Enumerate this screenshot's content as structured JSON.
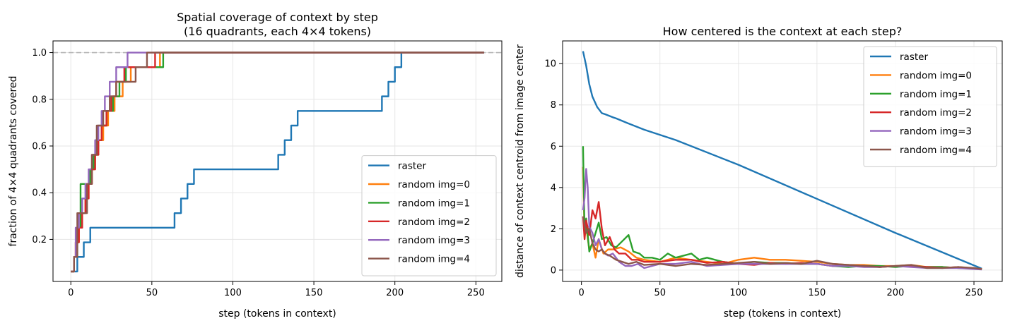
{
  "chart_data": [
    {
      "type": "line",
      "title": "Spatial coverage of context by step\n(16 quadrants, each 4×4 tokens)",
      "xlabel": "step (tokens in context)",
      "ylabel": "fraction of 4×4 quadrants covered",
      "xlim": [
        -11,
        266
      ],
      "ylim": [
        0.02,
        1.05
      ],
      "xticks": [
        0,
        50,
        100,
        150,
        200,
        250
      ],
      "yticks": [
        0.2,
        0.4,
        0.6,
        0.8,
        1.0
      ],
      "xtick_labels": [
        "0",
        "50",
        "100",
        "150",
        "200",
        "250"
      ],
      "ytick_labels": [
        "0.2",
        "0.4",
        "0.6",
        "0.8",
        "1.0"
      ],
      "grid": true,
      "legend_position": "lower-right",
      "reference_line": {
        "y": 1.0,
        "style": "dashed",
        "color": "#b5b5b5"
      },
      "series": [
        {
          "name": "raster",
          "color": "#1f77b4",
          "x": [
            0,
            4,
            8,
            12,
            64,
            68,
            72,
            76,
            128,
            132,
            136,
            140,
            192,
            196,
            200,
            204,
            255
          ],
          "y": [
            0.0625,
            0.125,
            0.1875,
            0.25,
            0.3125,
            0.375,
            0.4375,
            0.5,
            0.5625,
            0.625,
            0.6875,
            0.75,
            0.8125,
            0.875,
            0.9375,
            1.0,
            1.0
          ]
        },
        {
          "name": "random img=0",
          "color": "#ff7f0e",
          "x": [
            0,
            2,
            3,
            5,
            7,
            9,
            11,
            13,
            15,
            17,
            20,
            23,
            27,
            32,
            37,
            45,
            55,
            255
          ],
          "y": [
            0.0625,
            0.125,
            0.1875,
            0.25,
            0.3125,
            0.375,
            0.4375,
            0.5,
            0.5625,
            0.625,
            0.6875,
            0.75,
            0.8125,
            0.875,
            0.9375,
            0.9375,
            1.0,
            1.0
          ]
        },
        {
          "name": "random img=1",
          "color": "#2ca02c",
          "x": [
            0,
            2,
            4,
            6,
            10,
            12,
            14,
            17,
            19,
            22,
            26,
            30,
            34,
            40,
            47,
            52,
            57,
            255
          ],
          "y": [
            0.0625,
            0.125,
            0.25,
            0.4375,
            0.4375,
            0.5,
            0.5625,
            0.625,
            0.6875,
            0.75,
            0.8125,
            0.875,
            0.9375,
            0.9375,
            0.9375,
            0.9375,
            1.0,
            1.0
          ]
        },
        {
          "name": "random img=2",
          "color": "#d62728",
          "x": [
            0,
            2,
            3,
            5,
            7,
            9,
            11,
            13,
            15,
            17,
            19,
            22,
            25,
            28,
            33,
            38,
            43,
            52,
            255
          ],
          "y": [
            0.0625,
            0.125,
            0.1875,
            0.25,
            0.3125,
            0.375,
            0.4375,
            0.5,
            0.5625,
            0.625,
            0.6875,
            0.75,
            0.8125,
            0.875,
            0.9375,
            0.9375,
            0.9375,
            1.0,
            1.0
          ]
        },
        {
          "name": "random img=3",
          "color": "#9467bd",
          "x": [
            0,
            2,
            3,
            5,
            7,
            9,
            11,
            13,
            15,
            17,
            19,
            21,
            24,
            28,
            31,
            35,
            255
          ],
          "y": [
            0.0625,
            0.125,
            0.25,
            0.3125,
            0.375,
            0.4375,
            0.5,
            0.5625,
            0.625,
            0.6875,
            0.75,
            0.8125,
            0.875,
            0.9375,
            0.9375,
            1.0,
            1.0
          ]
        },
        {
          "name": "random img=4",
          "color": "#8c564b",
          "x": [
            0,
            2,
            4,
            8,
            10,
            13,
            16,
            20,
            24,
            28,
            34,
            40,
            44,
            47,
            50,
            255
          ],
          "y": [
            0.0625,
            0.125,
            0.3125,
            0.3125,
            0.4375,
            0.5625,
            0.6875,
            0.75,
            0.8125,
            0.875,
            0.875,
            0.9375,
            0.9375,
            1.0,
            1.0,
            1.0
          ]
        }
      ]
    },
    {
      "type": "line",
      "title": "How centered is the context at each step?",
      "xlabel": "step (tokens in context)",
      "ylabel": "distance of context centroid from image center",
      "xlim": [
        -12,
        268
      ],
      "ylim": [
        -0.55,
        11.1
      ],
      "xticks": [
        0,
        50,
        100,
        150,
        200,
        250
      ],
      "yticks": [
        0,
        2,
        4,
        6,
        8,
        10
      ],
      "xtick_labels": [
        "0",
        "50",
        "100",
        "150",
        "200",
        "250"
      ],
      "ytick_labels": [
        "0",
        "2",
        "4",
        "6",
        "8",
        "10"
      ],
      "grid": true,
      "legend_position": "upper-right",
      "series": [
        {
          "name": "raster",
          "color": "#1f77b4",
          "x": [
            1,
            3,
            5,
            7,
            10,
            13,
            15,
            20,
            22,
            30,
            40,
            60,
            100,
            150,
            200,
            255
          ],
          "y": [
            10.6,
            9.9,
            9.0,
            8.4,
            7.9,
            7.6,
            7.55,
            7.4,
            7.35,
            7.1,
            6.8,
            6.3,
            5.1,
            3.45,
            1.8,
            0.07
          ]
        },
        {
          "name": "random img=0",
          "color": "#ff7f0e",
          "x": [
            1,
            2,
            3,
            5,
            7,
            9,
            11,
            14,
            17,
            20,
            25,
            30,
            35,
            40,
            50,
            60,
            70,
            80,
            90,
            100,
            110,
            120,
            130,
            140,
            150,
            160,
            170,
            180,
            190,
            200,
            210,
            220,
            230,
            240,
            250,
            255
          ],
          "y": [
            5.0,
            1.6,
            2.1,
            1.0,
            1.3,
            0.6,
            1.5,
            0.8,
            1.0,
            1.0,
            1.1,
            0.9,
            0.6,
            0.5,
            0.4,
            0.6,
            0.5,
            0.4,
            0.3,
            0.5,
            0.6,
            0.5,
            0.5,
            0.45,
            0.4,
            0.3,
            0.25,
            0.25,
            0.2,
            0.2,
            0.25,
            0.15,
            0.15,
            0.1,
            0.08,
            0.05
          ]
        },
        {
          "name": "random img=1",
          "color": "#2ca02c",
          "x": [
            1,
            2,
            3,
            5,
            7,
            9,
            11,
            13,
            16,
            19,
            22,
            26,
            30,
            33,
            37,
            40,
            45,
            50,
            55,
            60,
            65,
            70,
            75,
            80,
            90,
            100,
            110,
            120,
            130,
            140,
            150,
            160,
            170,
            180,
            190,
            200,
            210,
            220,
            230,
            240,
            250,
            255
          ],
          "y": [
            6.0,
            1.8,
            2.5,
            0.9,
            1.3,
            1.8,
            2.3,
            1.5,
            1.6,
            1.2,
            1.1,
            1.4,
            1.7,
            0.9,
            0.8,
            0.6,
            0.6,
            0.5,
            0.8,
            0.6,
            0.7,
            0.8,
            0.5,
            0.6,
            0.4,
            0.3,
            0.4,
            0.35,
            0.35,
            0.3,
            0.3,
            0.2,
            0.15,
            0.2,
            0.2,
            0.15,
            0.2,
            0.15,
            0.15,
            0.1,
            0.08,
            0.05
          ]
        },
        {
          "name": "random img=2",
          "color": "#d62728",
          "x": [
            1,
            2,
            3,
            5,
            7,
            9,
            11,
            13,
            15,
            18,
            21,
            24,
            28,
            32,
            36,
            40,
            50,
            60,
            70,
            80,
            90,
            100,
            110,
            120,
            130,
            140,
            150,
            160,
            170,
            180,
            190,
            200,
            210,
            220,
            230,
            240,
            250,
            255
          ],
          "y": [
            2.6,
            1.5,
            2.4,
            1.7,
            2.9,
            2.5,
            3.3,
            2.0,
            1.2,
            1.6,
            1.0,
            0.8,
            0.8,
            0.5,
            0.5,
            0.4,
            0.4,
            0.5,
            0.5,
            0.35,
            0.4,
            0.3,
            0.25,
            0.35,
            0.3,
            0.35,
            0.3,
            0.2,
            0.25,
            0.2,
            0.15,
            0.2,
            0.2,
            0.15,
            0.1,
            0.15,
            0.08,
            0.05
          ]
        },
        {
          "name": "random img=3",
          "color": "#9467bd",
          "x": [
            1,
            2,
            3,
            4,
            5,
            7,
            9,
            11,
            13,
            15,
            17,
            20,
            24,
            28,
            32,
            36,
            40,
            50,
            60,
            70,
            80,
            90,
            100,
            110,
            120,
            130,
            140,
            150,
            160,
            170,
            180,
            190,
            200,
            210,
            220,
            230,
            240,
            250,
            255
          ],
          "y": [
            2.9,
            3.5,
            4.9,
            4.0,
            2.1,
            1.8,
            1.2,
            1.5,
            1.0,
            0.8,
            0.7,
            0.8,
            0.4,
            0.2,
            0.2,
            0.3,
            0.1,
            0.3,
            0.3,
            0.4,
            0.2,
            0.25,
            0.3,
            0.3,
            0.3,
            0.3,
            0.3,
            0.3,
            0.2,
            0.2,
            0.15,
            0.15,
            0.2,
            0.15,
            0.1,
            0.1,
            0.1,
            0.05,
            0.03
          ]
        },
        {
          "name": "random img=4",
          "color": "#8c564b",
          "x": [
            1,
            2,
            3,
            5,
            7,
            9,
            11,
            13,
            15,
            18,
            22,
            26,
            30,
            35,
            40,
            50,
            60,
            70,
            80,
            90,
            100,
            110,
            120,
            130,
            140,
            150,
            160,
            170,
            180,
            190,
            200,
            210,
            220,
            230,
            240,
            250,
            255
          ],
          "y": [
            2.6,
            2.2,
            1.8,
            2.0,
            1.3,
            1.0,
            0.9,
            1.0,
            0.8,
            0.7,
            0.5,
            0.4,
            0.3,
            0.4,
            0.25,
            0.3,
            0.2,
            0.3,
            0.25,
            0.3,
            0.35,
            0.4,
            0.3,
            0.35,
            0.3,
            0.45,
            0.3,
            0.25,
            0.2,
            0.15,
            0.2,
            0.25,
            0.1,
            0.1,
            0.15,
            0.1,
            0.05
          ]
        }
      ]
    }
  ]
}
